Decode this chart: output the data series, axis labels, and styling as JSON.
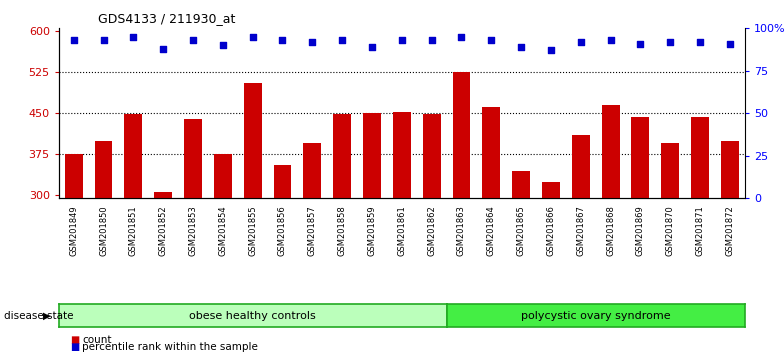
{
  "title": "GDS4133 / 211930_at",
  "samples": [
    "GSM201849",
    "GSM201850",
    "GSM201851",
    "GSM201852",
    "GSM201853",
    "GSM201854",
    "GSM201855",
    "GSM201856",
    "GSM201857",
    "GSM201858",
    "GSM201859",
    "GSM201861",
    "GSM201862",
    "GSM201863",
    "GSM201864",
    "GSM201865",
    "GSM201866",
    "GSM201867",
    "GSM201868",
    "GSM201869",
    "GSM201870",
    "GSM201871",
    "GSM201872"
  ],
  "counts": [
    375,
    400,
    448,
    307,
    440,
    375,
    505,
    355,
    395,
    448,
    450,
    452,
    448,
    525,
    462,
    345,
    325,
    410,
    465,
    443,
    395,
    443,
    400
  ],
  "percentiles": [
    93,
    93,
    95,
    88,
    93,
    90,
    95,
    93,
    92,
    93,
    89,
    93,
    93,
    95,
    93,
    89,
    87,
    92,
    93,
    91,
    92,
    92,
    91
  ],
  "group1_label": "obese healthy controls",
  "group1_count": 13,
  "group2_label": "polycystic ovary syndrome",
  "group2_count": 10,
  "disease_state_label": "disease state",
  "bar_color": "#cc0000",
  "dot_color": "#0000cc",
  "group1_color": "#bbffbb",
  "group2_color": "#44ee44",
  "ylim_left": [
    295,
    605
  ],
  "ylim_right": [
    0,
    100
  ],
  "yticks_left": [
    300,
    375,
    450,
    525,
    600
  ],
  "yticks_right": [
    0,
    25,
    50,
    75,
    100
  ],
  "ytick_labels_right": [
    "0",
    "25",
    "50",
    "75",
    "100%"
  ],
  "hlines": [
    375,
    450,
    525
  ],
  "legend_count_label": "count",
  "legend_pct_label": "percentile rank within the sample",
  "background_color": "#ffffff",
  "bar_width": 0.6
}
